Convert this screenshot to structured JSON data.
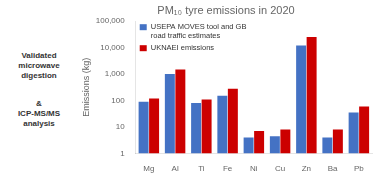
{
  "chart_data": {
    "type": "bar",
    "title": "PM₁₀ tyre emissions in 2020",
    "categories": [
      "Mg",
      "Al",
      "Ti",
      "Fe",
      "Ni",
      "Cu",
      "Zn",
      "Ba",
      "Pb"
    ],
    "series": [
      {
        "name": "USEPA MOVES tool and GB\nroad traffic estimates",
        "color": "#4472C4",
        "values": [
          90,
          1000,
          80,
          150,
          4,
          4.5,
          12000,
          4,
          35
        ]
      },
      {
        "name": "UKNAEI emissions",
        "color": "#CC0000",
        "values": [
          120,
          1500,
          110,
          280,
          7,
          8,
          25000,
          8,
          60
        ]
      }
    ],
    "ylabel": "Emissions (kg)",
    "log": "y",
    "ylim": [
      1,
      100000
    ],
    "yticks": [
      1,
      10,
      100,
      {
        "value": 1000,
        "label": "1,000"
      },
      {
        "value": 10000,
        "label": "10,000"
      },
      {
        "value": 100000,
        "label": "100,000"
      }
    ],
    "grid": false,
    "legend": "upper left",
    "annotations": [
      "Validated\nmicrowave\ndigestion",
      "&\nICP-MS/MS\nanalysis"
    ]
  }
}
